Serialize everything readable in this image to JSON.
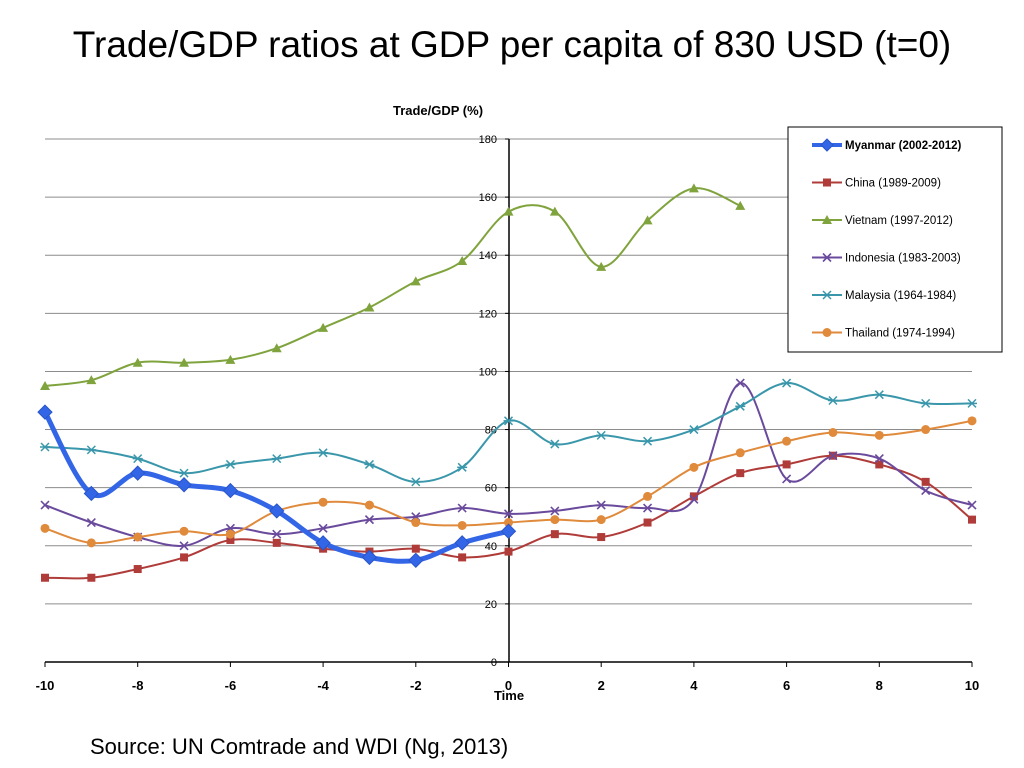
{
  "slide": {
    "title": "Trade/GDP ratios at GDP per capita of 830 USD (t=0)",
    "source": "Source: UN Comtrade and WDI (Ng, 2013)"
  },
  "chart_data": {
    "type": "line",
    "title": "",
    "ylabel": "Trade/GDP (%)",
    "xlabel": "Time",
    "xlim": [
      -10,
      10
    ],
    "ylim": [
      0,
      180
    ],
    "x_ticks": [
      -10,
      -8,
      -6,
      -4,
      -2,
      0,
      2,
      4,
      6,
      8,
      10
    ],
    "y_ticks": [
      0,
      20,
      40,
      60,
      80,
      100,
      120,
      140,
      160,
      180
    ],
    "grid": "horizontal",
    "legend_position": "top-right",
    "series": [
      {
        "name": "Myanmar (2002-2012)",
        "color": "#3366e6",
        "marker": "diamond",
        "bold": true,
        "x": [
          -10,
          -9,
          -8,
          -7,
          -6,
          -5,
          -4,
          -3,
          -2,
          -1,
          0
        ],
        "y": [
          86,
          58,
          65,
          61,
          59,
          52,
          41,
          36,
          35,
          41,
          45
        ]
      },
      {
        "name": "China (1989-2009)",
        "color": "#b03c3a",
        "marker": "square",
        "x": [
          -10,
          -9,
          -8,
          -7,
          -6,
          -5,
          -4,
          -3,
          -2,
          -1,
          0,
          1,
          2,
          3,
          4,
          5,
          6,
          7,
          8,
          9,
          10
        ],
        "y": [
          29,
          29,
          32,
          36,
          42,
          41,
          39,
          38,
          39,
          36,
          38,
          44,
          43,
          48,
          57,
          65,
          68,
          71,
          68,
          62,
          49
        ]
      },
      {
        "name": "Vietnam (1997-2012)",
        "color": "#7fa33d",
        "marker": "triangle",
        "x": [
          -10,
          -9,
          -8,
          -7,
          -6,
          -5,
          -4,
          -3,
          -2,
          -1,
          0,
          1,
          2,
          3,
          4,
          5
        ],
        "y": [
          95,
          97,
          103,
          103,
          104,
          108,
          115,
          122,
          131,
          138,
          155,
          155,
          136,
          152,
          163,
          157
        ]
      },
      {
        "name": "Indonesia (1983-2003)",
        "color": "#6a4a9c",
        "marker": "x",
        "x": [
          -10,
          -9,
          -8,
          -7,
          -6,
          -5,
          -4,
          -3,
          -2,
          -1,
          0,
          1,
          2,
          3,
          4,
          5,
          6,
          7,
          8,
          9,
          10
        ],
        "y": [
          54,
          48,
          43,
          40,
          46,
          44,
          46,
          49,
          50,
          53,
          51,
          52,
          54,
          53,
          56,
          96,
          63,
          71,
          70,
          59,
          54
        ]
      },
      {
        "name": "Malaysia (1964-1984)",
        "color": "#3a97ab",
        "marker": "asterisk",
        "x": [
          -10,
          -9,
          -8,
          -7,
          -6,
          -5,
          -4,
          -3,
          -2,
          -1,
          0,
          1,
          2,
          3,
          4,
          5,
          6,
          7,
          8,
          9,
          10
        ],
        "y": [
          74,
          73,
          70,
          65,
          68,
          70,
          72,
          68,
          62,
          67,
          83,
          75,
          78,
          76,
          80,
          88,
          96,
          90,
          92,
          89,
          89
        ]
      },
      {
        "name": "Thailand (1974-1994)",
        "color": "#e08a3c",
        "marker": "circle",
        "x": [
          -10,
          -9,
          -8,
          -7,
          -6,
          -5,
          -4,
          -3,
          -2,
          -1,
          0,
          1,
          2,
          3,
          4,
          5,
          6,
          7,
          8,
          9,
          10
        ],
        "y": [
          46,
          41,
          43,
          45,
          44,
          52,
          55,
          54,
          48,
          47,
          48,
          49,
          49,
          57,
          67,
          72,
          76,
          79,
          78,
          80,
          83
        ]
      }
    ]
  }
}
